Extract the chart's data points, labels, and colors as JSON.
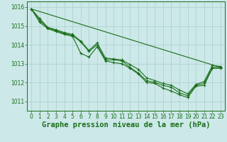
{
  "bg_color": "#cce8e8",
  "grid_color": "#aacece",
  "line_color": "#1a6e1a",
  "title": "Graphe pression niveau de la mer (hPa)",
  "xlim": [
    -0.5,
    23.5
  ],
  "ylim": [
    1010.5,
    1016.3
  ],
  "yticks": [
    1011,
    1012,
    1013,
    1014,
    1015,
    1016
  ],
  "xticks": [
    0,
    1,
    2,
    3,
    4,
    5,
    6,
    7,
    8,
    9,
    10,
    11,
    12,
    13,
    14,
    15,
    16,
    17,
    18,
    19,
    20,
    21,
    22,
    23
  ],
  "line1_x": [
    0,
    1,
    2,
    3,
    4,
    5,
    6,
    7,
    8,
    9,
    10,
    11,
    12,
    13,
    14,
    15,
    16,
    17,
    18,
    19,
    20,
    21,
    22,
    23
  ],
  "line1_y": [
    1015.9,
    1015.3,
    1014.9,
    1014.75,
    1014.6,
    1014.5,
    1014.15,
    1013.65,
    1014.0,
    1013.2,
    1013.2,
    1013.15,
    1012.8,
    1012.5,
    1012.1,
    1012.0,
    1011.85,
    1011.75,
    1011.45,
    1011.3,
    1011.85,
    1011.95,
    1012.8,
    1012.8
  ],
  "line2_x": [
    0,
    1,
    2,
    3,
    4,
    5,
    6,
    7,
    8,
    9,
    10,
    11,
    12,
    13,
    14,
    15,
    16,
    17,
    18,
    19,
    20,
    21,
    22,
    23
  ],
  "line2_y": [
    1015.9,
    1015.4,
    1014.92,
    1014.8,
    1014.65,
    1014.55,
    1014.2,
    1013.7,
    1014.1,
    1013.3,
    1013.25,
    1013.2,
    1012.95,
    1012.7,
    1012.25,
    1012.1,
    1011.95,
    1011.85,
    1011.6,
    1011.4,
    1011.9,
    1012.05,
    1012.9,
    1012.85
  ],
  "line3_x": [
    0,
    23
  ],
  "line3_y": [
    1015.9,
    1012.8
  ],
  "line4_x": [
    0,
    1,
    2,
    3,
    4,
    5,
    6,
    7,
    8,
    9,
    10,
    11,
    12,
    13,
    14,
    15,
    16,
    17,
    18,
    19,
    20,
    21,
    22,
    23
  ],
  "line4_y": [
    1015.9,
    1015.2,
    1014.85,
    1014.7,
    1014.55,
    1014.45,
    1013.55,
    1013.35,
    1013.9,
    1013.15,
    1013.05,
    1013.0,
    1012.75,
    1012.45,
    1012.0,
    1011.95,
    1011.7,
    1011.55,
    1011.35,
    1011.2,
    1011.8,
    1011.85,
    1012.75,
    1012.75
  ],
  "title_fontsize": 7.5,
  "tick_fontsize": 5.5
}
